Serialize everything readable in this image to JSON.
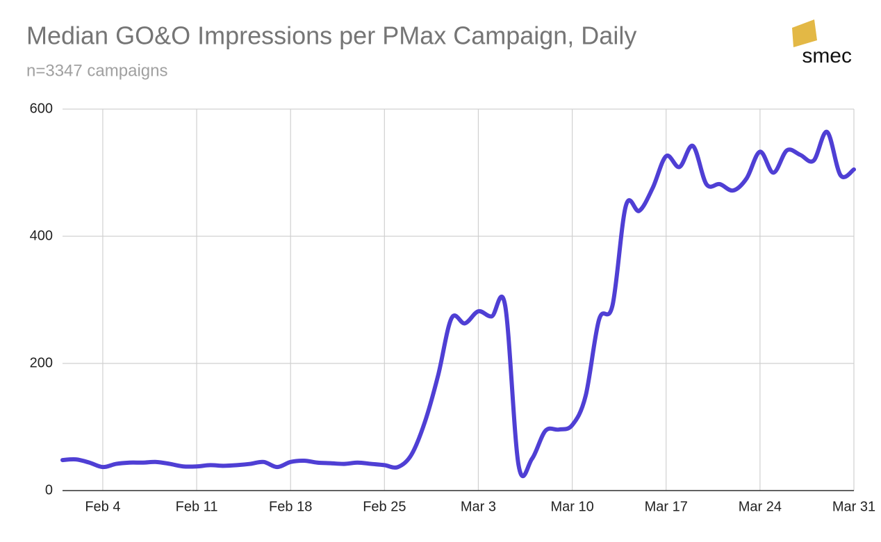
{
  "chart_data": {
    "type": "line",
    "title": "Median GO&O Impressions per PMax Campaign, Daily",
    "subtitle": "n=3347 campaigns",
    "logo": "smec",
    "categories": [
      null,
      null,
      null,
      "Feb 4",
      null,
      null,
      null,
      null,
      null,
      null,
      "Feb 11",
      null,
      null,
      null,
      null,
      null,
      null,
      "Feb 18",
      null,
      null,
      null,
      null,
      null,
      null,
      "Feb 25",
      null,
      null,
      null,
      null,
      null,
      null,
      "Mar 3",
      null,
      null,
      null,
      null,
      null,
      null,
      "Mar 10",
      null,
      null,
      null,
      null,
      null,
      null,
      "Mar 17",
      null,
      null,
      null,
      null,
      null,
      null,
      "Mar 24",
      null,
      null,
      null,
      null,
      null,
      null,
      "Mar 31"
    ],
    "series": [
      {
        "color": "#4f3fd4",
        "values": [
          48,
          49,
          44,
          37,
          42,
          44,
          44,
          45,
          42,
          38,
          38,
          40,
          39,
          40,
          42,
          45,
          37,
          45,
          47,
          44,
          43,
          42,
          44,
          42,
          40,
          37,
          56,
          107,
          181,
          271,
          263,
          282,
          274,
          291,
          40,
          50,
          94,
          96,
          103,
          149,
          269,
          291,
          448,
          440,
          476,
          526,
          509,
          542,
          482,
          482,
          472,
          491,
          533,
          500,
          535,
          528,
          519,
          564,
          496,
          505
        ]
      }
    ],
    "ylim": [
      0,
      600
    ],
    "yticks": [
      0,
      200,
      400,
      600
    ],
    "grid": true
  }
}
